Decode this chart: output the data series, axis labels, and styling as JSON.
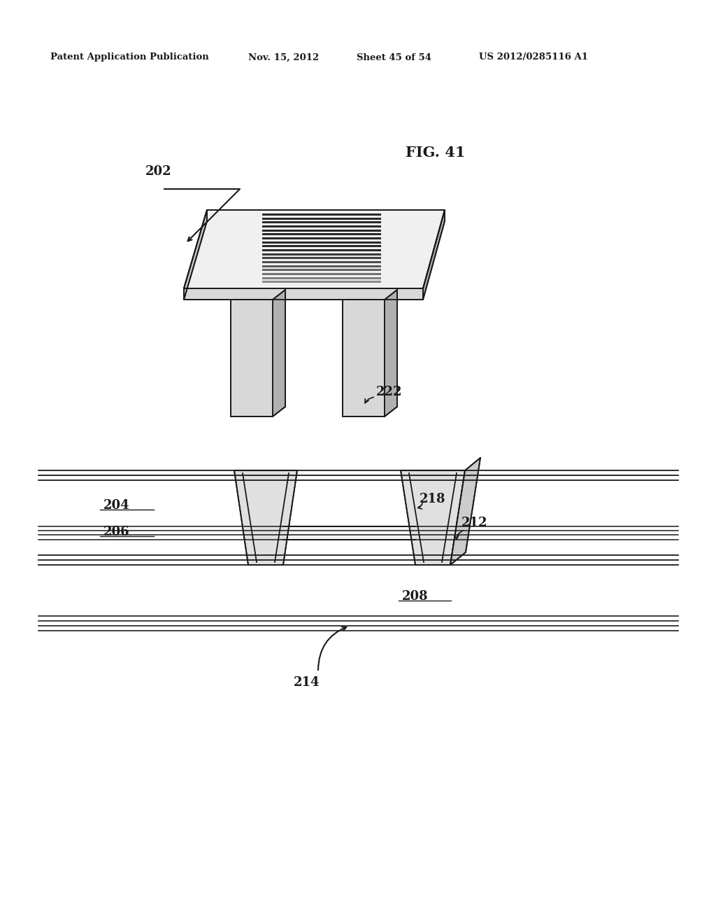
{
  "bg_color": "#ffffff",
  "header_text": "Patent Application Publication",
  "header_date": "Nov. 15, 2012",
  "header_sheet": "Sheet 45 of 54",
  "header_patent": "US 2012/0285116 A1",
  "fig_label": "FIG. 41",
  "label_202": "202",
  "label_222": "222",
  "label_204": "204",
  "label_206": "206",
  "label_208": "208",
  "label_212": "212",
  "label_214": "214",
  "label_218": "218",
  "line_color": "#1a1a1a",
  "fill_light": "#f0f0f0",
  "fill_mid": "#d8d8d8",
  "fill_dark": "#b0b0b0",
  "fill_stripe_dark": "#2a2a2a",
  "fill_stripe_light": "#888888"
}
